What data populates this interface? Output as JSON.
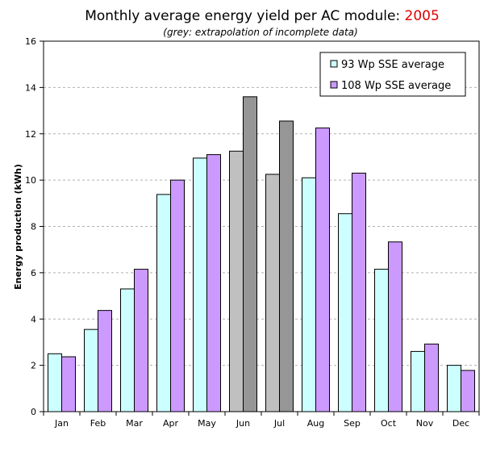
{
  "chart_data": {
    "type": "bar",
    "title_prefix": "Monthly average energy yield per AC module: ",
    "title_year": "2005",
    "subtitle": "(grey: extrapolation of incomplete data)",
    "xlabel": "",
    "ylabel": "Energy production (kWh)",
    "ylim": [
      0,
      16
    ],
    "y_ticks": [
      "0",
      "2",
      "4",
      "6",
      "8",
      "10",
      "12",
      "14",
      "16"
    ],
    "grid": "horizontal dashed",
    "legend_position": "top-right",
    "categories": [
      "Jan",
      "Feb",
      "Mar",
      "Apr",
      "May",
      "Jun",
      "Jul",
      "Aug",
      "Sep",
      "Oct",
      "Nov",
      "Dec"
    ],
    "extrapolated_categories": [
      "Jun",
      "Jul"
    ],
    "series": [
      {
        "name": "93 Wp SSE average",
        "color": "#ccffff",
        "extrapolated_color": "#c0c0c0",
        "values": [
          2.5,
          3.55,
          5.3,
          9.38,
          10.95,
          11.25,
          10.25,
          10.1,
          8.55,
          6.15,
          2.6,
          2.0
        ]
      },
      {
        "name": "108 Wp SSE average",
        "color": "#cc99ff",
        "extrapolated_color": "#969696",
        "values": [
          2.37,
          4.37,
          6.15,
          10.0,
          11.1,
          13.6,
          12.55,
          12.25,
          10.3,
          7.33,
          2.92,
          1.78
        ]
      }
    ]
  }
}
